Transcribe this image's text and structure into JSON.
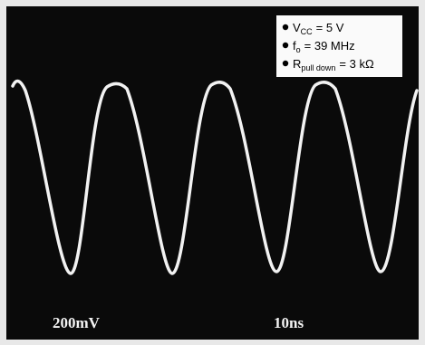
{
  "legend": [
    {
      "symbol": "V",
      "subscript": "CC",
      "value": "= 5 V"
    },
    {
      "symbol": "f",
      "subscript": "o",
      "value": "= 39 MHz"
    },
    {
      "symbol": "R",
      "subscript": "pull down",
      "value": "= 3 kΩ"
    }
  ],
  "scale": {
    "vertical": "200mV",
    "horizontal": "10ns"
  }
}
